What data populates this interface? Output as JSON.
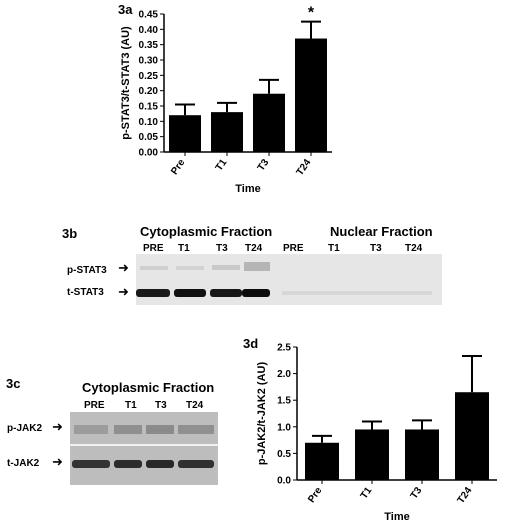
{
  "panels": {
    "a": "3a",
    "b": "3b",
    "c": "3c",
    "d": "3d"
  },
  "chart_data": [
    {
      "type": "bar",
      "categories": [
        "Pre",
        "T1",
        "T3",
        "T24"
      ],
      "values": [
        0.12,
        0.13,
        0.19,
        0.37
      ],
      "errors": [
        0.035,
        0.03,
        0.045,
        0.055
      ],
      "annotations": [
        "",
        "",
        "",
        "*"
      ],
      "ylabel": "p-STAT3/t-STAT3 (AU)",
      "xlabel": "Time",
      "ylim": [
        0,
        0.45
      ],
      "yticks": [
        "0.00",
        "0.05",
        "0.10",
        "0.15",
        "0.20",
        "0.25",
        "0.30",
        "0.35",
        "0.40",
        "0.45"
      ],
      "grid": false,
      "bar_color": "#000000"
    },
    {
      "type": "bar",
      "categories": [
        "Pre",
        "T1",
        "T3",
        "T24"
      ],
      "values": [
        0.7,
        0.95,
        0.95,
        1.65
      ],
      "errors": [
        0.13,
        0.15,
        0.17,
        0.68
      ],
      "annotations": [
        "",
        "",
        "",
        ""
      ],
      "ylabel": "p-JAK2/t-JAK2 (AU)",
      "xlabel": "Time",
      "ylim": [
        0,
        2.5
      ],
      "yticks": [
        "0.0",
        "0.5",
        "1.0",
        "1.5",
        "2.0",
        "2.5"
      ],
      "grid": false,
      "bar_color": "#000000"
    }
  ],
  "blot_b": {
    "cyto_title": "Cytoplasmic Fraction",
    "nuclear_title": "Nuclear Fraction",
    "cyto_lanes": [
      "PRE",
      "T1",
      "T3",
      "T24"
    ],
    "nuclear_lanes": [
      "PRE",
      "T1",
      "T3",
      "T24"
    ],
    "rows": [
      "p-STAT3",
      "t-STAT3"
    ]
  },
  "blot_c": {
    "title": "Cytoplasmic Fraction",
    "lanes": [
      "PRE",
      "T1",
      "T3",
      "T24"
    ],
    "rows": [
      "p-JAK2",
      "t-JAK2"
    ]
  }
}
